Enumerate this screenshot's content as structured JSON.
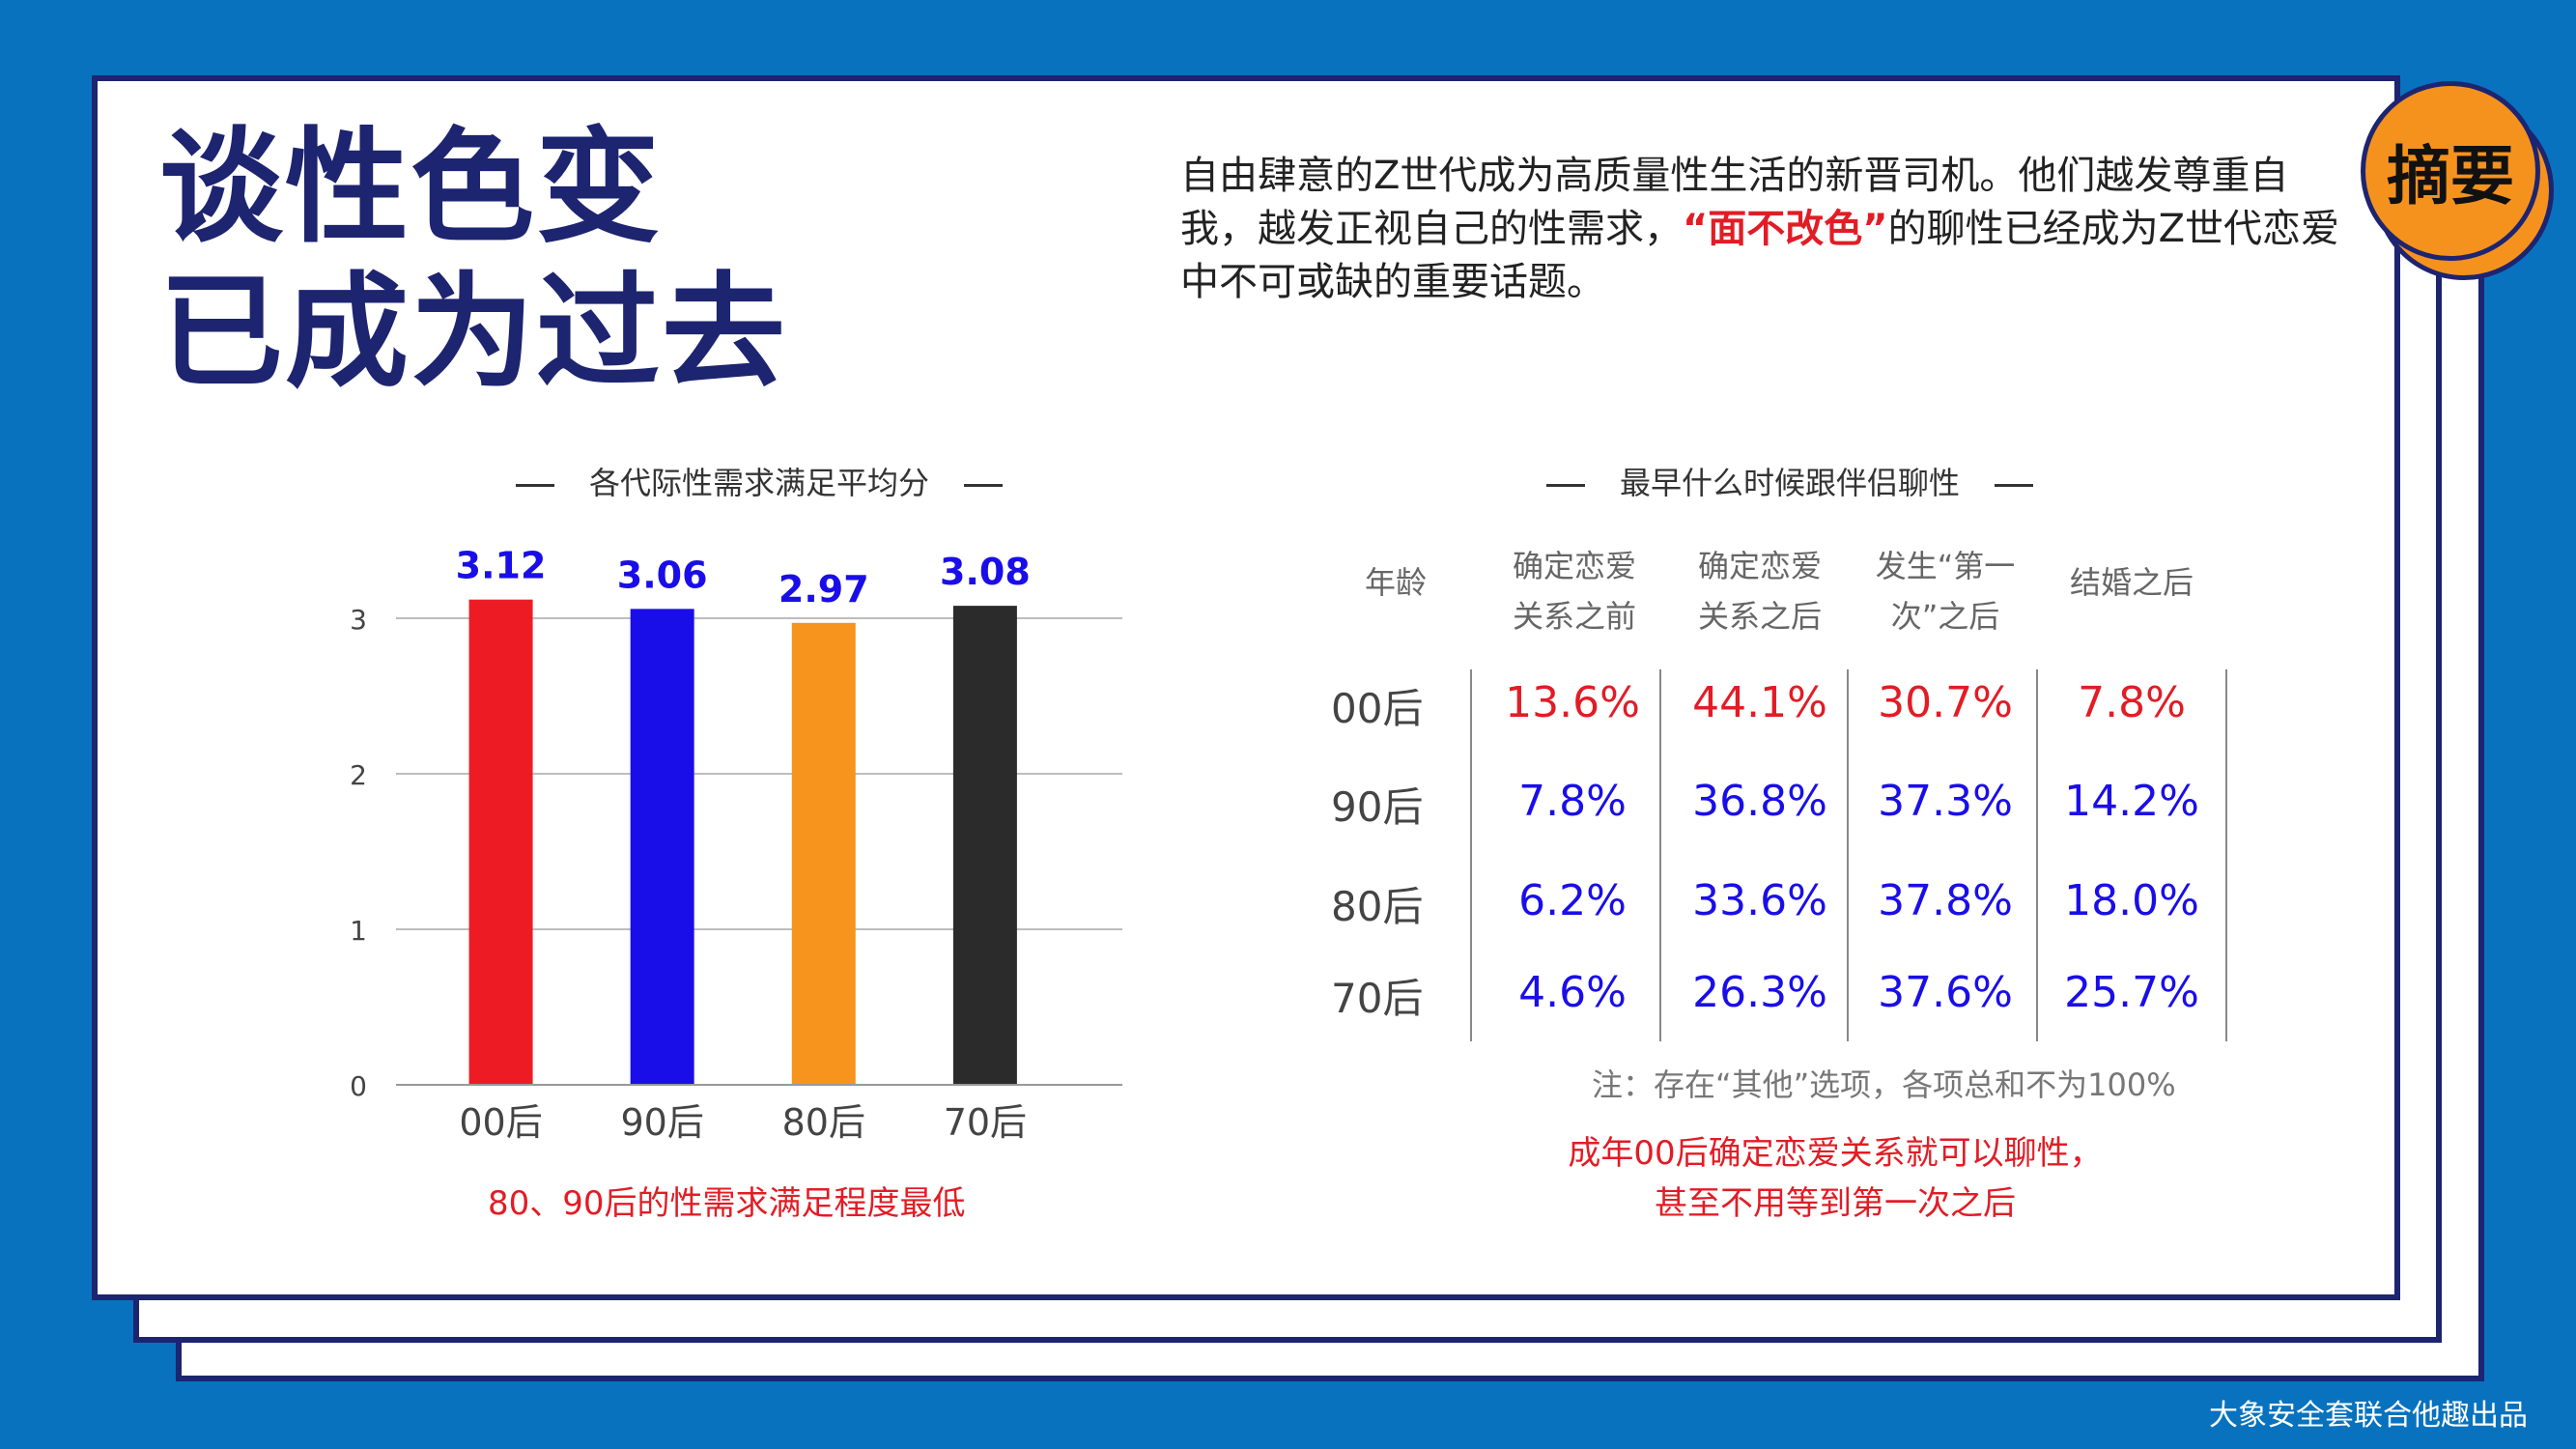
{
  "title_lines": [
    "谈性色变",
    "已成为过去"
  ],
  "badge": "摘要",
  "intro": {
    "before": "自由肆意的Z世代成为高质量性生活的新晋司机。他们越发尊重自我，越发正视自己的性需求，",
    "highlight": "“面不改色”",
    "after": "的聊性已经成为Z世代恋爱中不可或缺的重要话题。"
  },
  "colors": {
    "navy": "#1d2470",
    "blue_bg": "#0872be",
    "red": "#e21c25",
    "blue": "#1a0ee8",
    "orange": "#f7941d",
    "black": "#2b2b2b"
  },
  "chart_data": [
    {
      "type": "bar",
      "title": "各代际性需求满足平均分",
      "categories": [
        "00后",
        "90后",
        "80后",
        "70后"
      ],
      "values": [
        3.12,
        3.06,
        2.97,
        3.08
      ],
      "value_labels": [
        "3.12",
        "3.06",
        "2.97",
        "3.08"
      ],
      "bar_colors": [
        "#ed1c24",
        "#1a0ee8",
        "#f7941d",
        "#2b2b2b"
      ],
      "value_label_color": "#1a0ee8",
      "ylim": [
        0,
        3
      ],
      "yticks": [
        0,
        1,
        2,
        3
      ],
      "ytick_labels": [
        "0",
        "1",
        "2",
        "3"
      ],
      "grid": true,
      "note": "80、90后的性需求满足程度最低"
    },
    {
      "type": "table",
      "title": "最早什么时候跟伴侣聊性",
      "header_label": "年龄",
      "columns": [
        [
          "确定恋爱",
          "关系之前"
        ],
        [
          "确定恋爱",
          "关系之后"
        ],
        [
          "发生“第一",
          "次”之后"
        ],
        [
          "结婚之后"
        ]
      ],
      "rows": [
        {
          "label": "00后",
          "values": [
            "13.6%",
            "44.1%",
            "30.7%",
            "7.8%"
          ],
          "color": "#e21c25"
        },
        {
          "label": "90后",
          "values": [
            "7.8%",
            "36.8%",
            "37.3%",
            "14.2%"
          ],
          "color": "#1a0ee8"
        },
        {
          "label": "80后",
          "values": [
            "6.2%",
            "33.6%",
            "37.8%",
            "18.0%"
          ],
          "color": "#1a0ee8"
        },
        {
          "label": "70后",
          "values": [
            "4.6%",
            "26.3%",
            "37.6%",
            "25.7%"
          ],
          "color": "#1a0ee8"
        }
      ],
      "note": "注：存在“其他”选项，各项总和不为100%",
      "conclusion": [
        "成年00后确定恋爱关系就可以聊性，",
        "甚至不用等到第一次之后"
      ]
    }
  ],
  "footer": "大象安全套联合他趣出品"
}
